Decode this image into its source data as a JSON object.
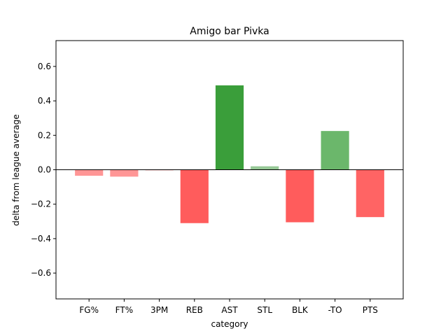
{
  "chart_data": {
    "type": "bar",
    "title": "Amigo bar Pivka",
    "xlabel": "category",
    "ylabel": "delta from league average",
    "ylim": [
      -0.75,
      0.75
    ],
    "yticks": [
      -0.6,
      -0.4,
      -0.2,
      0.0,
      0.2,
      0.4,
      0.6
    ],
    "ytick_labels": [
      "−0.6",
      "−0.4",
      "−0.2",
      "0.0",
      "0.2",
      "0.4",
      "0.6"
    ],
    "categories": [
      "FG%",
      "FT%",
      "3PM",
      "REB",
      "AST",
      "STL",
      "BLK",
      "-TO",
      "PTS"
    ],
    "values": [
      -0.035,
      -0.04,
      -0.003,
      -0.31,
      0.49,
      0.02,
      -0.305,
      0.225,
      -0.275
    ],
    "colors": [
      "#ff9696",
      "#ff9696",
      "#ff9696",
      "#ff5c5c",
      "#3a9e3a",
      "#96c896",
      "#ff5c5c",
      "#6bb76b",
      "#ff6464"
    ],
    "grid": false,
    "legend": "none",
    "zero_line": true
  }
}
